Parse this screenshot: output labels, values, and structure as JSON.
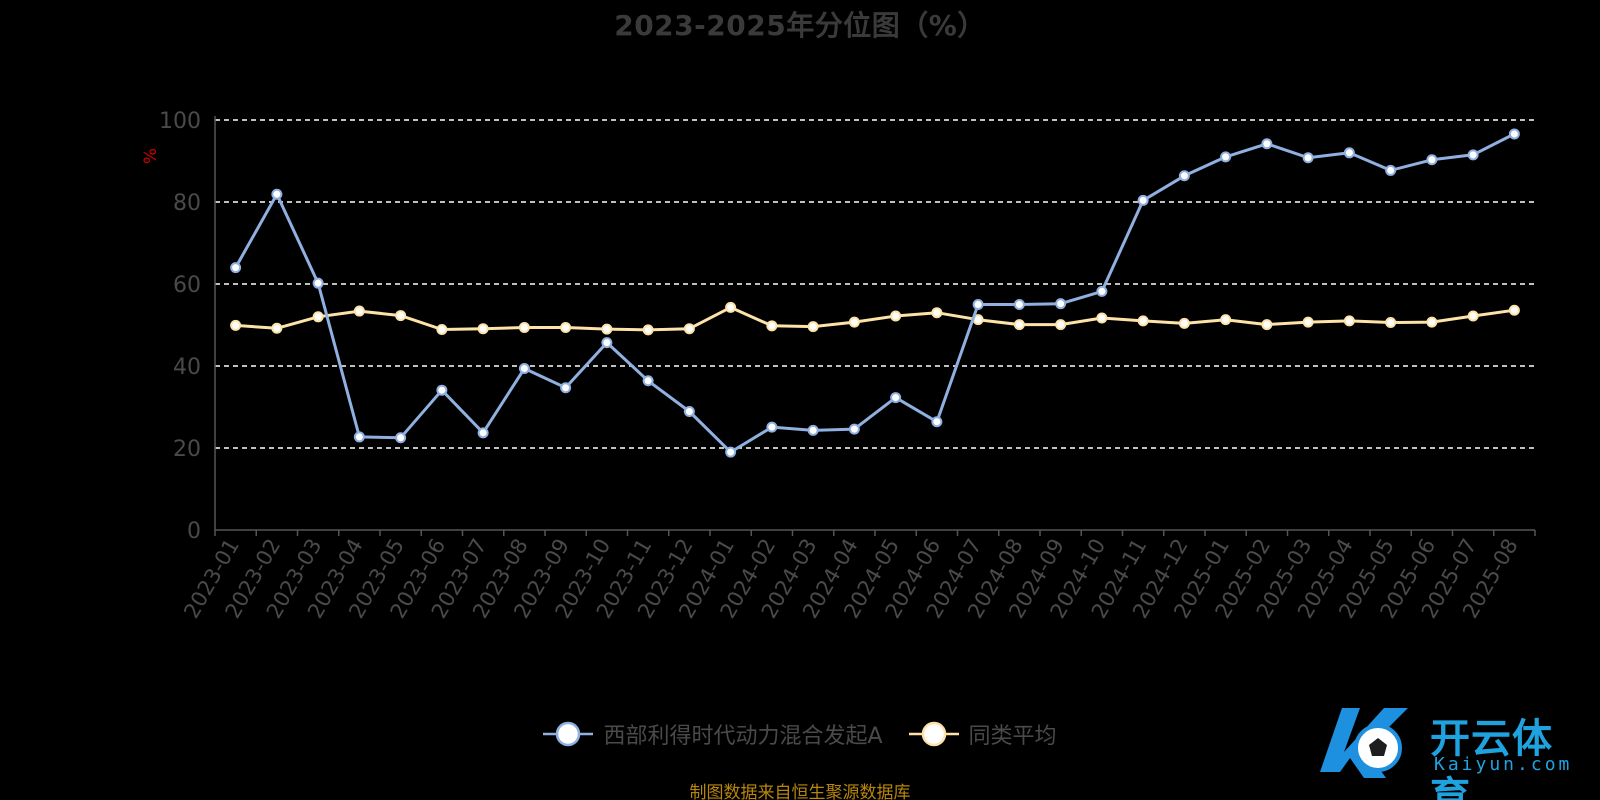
{
  "title": "2023-2025年分位图（%）",
  "source_note": "制图数据来自恒生聚源数据库",
  "watermark": {
    "cn": "开云体育",
    "en": "Kaiyun.com"
  },
  "colors": {
    "background": "#000000",
    "series1": "#8fb0e0",
    "series2": "#fde3a7",
    "grid": "#ffffff",
    "axis": "#555555",
    "tick_label": "#4a4a4a",
    "unit": "#cc0000",
    "source_note": "#b8860b",
    "watermark": "#1fa3e0"
  },
  "chart_data": {
    "type": "line",
    "title": "2023-2025年分位图（%）",
    "ylabel": "%",
    "xlabel": "",
    "ylim": [
      0,
      100
    ],
    "yticks": [
      0,
      20,
      40,
      60,
      80,
      100
    ],
    "grid": "horizontal-dashed",
    "legend_position": "bottom-center",
    "categories": [
      "2023-01",
      "2023-02",
      "2023-03",
      "2023-04",
      "2023-05",
      "2023-06",
      "2023-07",
      "2023-08",
      "2023-09",
      "2023-10",
      "2023-11",
      "2023-12",
      "2024-01",
      "2024-02",
      "2024-03",
      "2024-04",
      "2024-05",
      "2024-06",
      "2024-07",
      "2024-08",
      "2024-09",
      "2024-10",
      "2024-11",
      "2024-12",
      "2025-01",
      "2025-02",
      "2025-03",
      "2025-04",
      "2025-05",
      "2025-06",
      "2025-07",
      "2025-08"
    ],
    "series": [
      {
        "name": "西部利得时代动力混合发起A",
        "color": "#8fb0e0",
        "values": [
          64.0,
          81.9,
          60.2,
          22.7,
          22.5,
          34.1,
          23.7,
          39.4,
          34.7,
          45.7,
          36.4,
          28.9,
          19.0,
          25.1,
          24.3,
          24.6,
          32.3,
          26.4,
          55.0,
          55.0,
          55.2,
          58.2,
          80.4,
          86.4,
          91.0,
          94.2,
          90.8,
          92.0,
          87.7,
          90.3,
          91.5,
          96.6
        ]
      },
      {
        "name": "同类平均",
        "color": "#fde3a7",
        "values": [
          49.9,
          49.2,
          52.0,
          53.4,
          52.3,
          48.9,
          49.1,
          49.4,
          49.4,
          49.0,
          48.8,
          49.1,
          54.3,
          49.8,
          49.6,
          50.7,
          52.2,
          53.0,
          51.3,
          50.1,
          50.1,
          51.7,
          51.0,
          50.4,
          51.3,
          50.1,
          50.7,
          51.0,
          50.6,
          50.7,
          52.2,
          53.6
        ]
      }
    ]
  }
}
